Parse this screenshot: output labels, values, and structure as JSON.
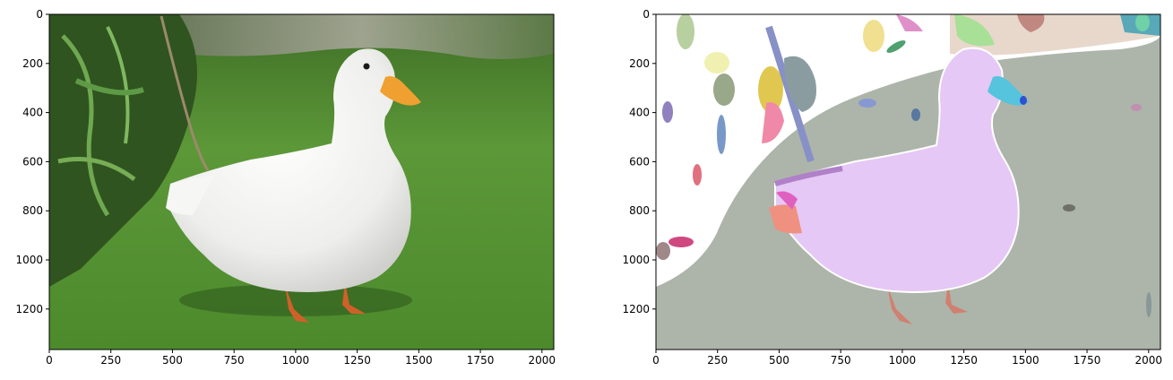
{
  "panels": [
    {
      "id": "photo",
      "x_ticks": [
        "0",
        "250",
        "500",
        "750",
        "1000",
        "1250",
        "1500",
        "1750",
        "2000"
      ],
      "y_ticks": [
        "0",
        "200",
        "400",
        "600",
        "800",
        "1000",
        "1200"
      ]
    },
    {
      "id": "segmentation",
      "x_ticks": [
        "0",
        "250",
        "500",
        "750",
        "1000",
        "1250",
        "1500",
        "1750",
        "2000"
      ],
      "y_ticks": [
        "0",
        "200",
        "400",
        "600",
        "800",
        "1000",
        "1200"
      ]
    }
  ],
  "colors": {
    "grass": "#4f8a2e",
    "duck": "#f4f4f2",
    "beak": "#f0a030",
    "legs": "#d0602a",
    "seg_background": "#adb5aa",
    "seg_duck": "#e5c8f5",
    "seg_beak": "#55c4dc",
    "seg_wall": "#e8d8cc"
  }
}
